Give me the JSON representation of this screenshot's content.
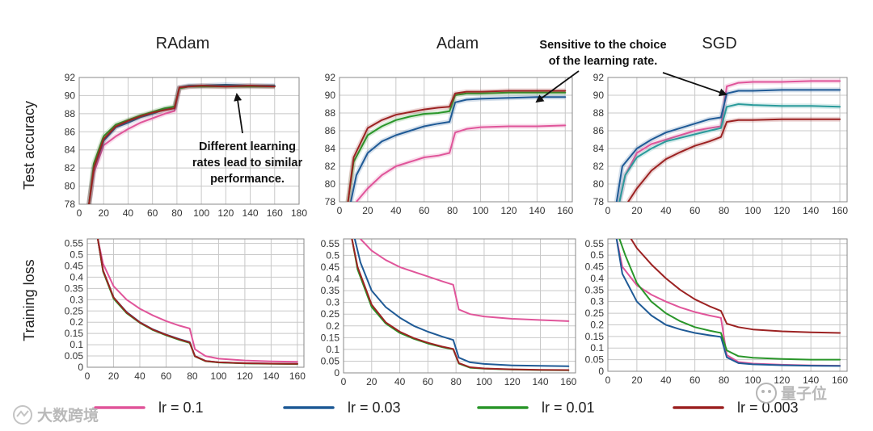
{
  "colors": {
    "lr_0_1": "#e0559a",
    "lr_0_03": "#1f5a96",
    "lr_0_01": "#2a962a",
    "lr_0_003": "#9c2222",
    "teal": "#2a9b9b",
    "grid": "#c8c8c8",
    "axis": "#888888"
  },
  "row_labels": {
    "top": "Test accuracy",
    "bottom": "Training loss"
  },
  "legend": [
    {
      "label": "lr = 0.1",
      "color": "#e0559a"
    },
    {
      "label": "lr = 0.03",
      "color": "#1f5a96"
    },
    {
      "label": "lr = 0.01",
      "color": "#2a962a"
    },
    {
      "label": "lr = 0.003",
      "color": "#9c2222"
    }
  ],
  "annotations": {
    "radam": [
      "Different learning",
      "rates lead to similar",
      "performance."
    ],
    "adam_sgd": [
      "Sensitive to the choice",
      "of the learning rate."
    ]
  },
  "watermarks": {
    "left": "大数跨境",
    "right": "量子位"
  },
  "chart_data": [
    {
      "id": "radam-acc",
      "type": "line",
      "title": "RAdam",
      "ylabel": "Test accuracy",
      "xlim": [
        0,
        180
      ],
      "ylim": [
        78,
        92
      ],
      "xticks": [
        0,
        20,
        40,
        60,
        80,
        100,
        120,
        140,
        160,
        180
      ],
      "yticks": [
        78,
        80,
        82,
        84,
        86,
        88,
        90,
        92
      ],
      "series": [
        {
          "color": "#e0559a",
          "x": [
            8,
            12,
            20,
            30,
            40,
            50,
            60,
            70,
            78,
            82,
            90,
            100,
            120,
            140,
            160
          ],
          "y": [
            78,
            81.5,
            84.5,
            85.5,
            86.3,
            87,
            87.5,
            88,
            88.3,
            90.8,
            91,
            91,
            91,
            91,
            91
          ]
        },
        {
          "color": "#1f5a96",
          "x": [
            8,
            12,
            20,
            30,
            40,
            50,
            60,
            70,
            78,
            82,
            90,
            100,
            120,
            140,
            160
          ],
          "y": [
            78,
            82,
            85,
            86.5,
            87,
            87.6,
            88,
            88.5,
            88.6,
            90.9,
            91.1,
            91.1,
            91.2,
            91.1,
            91.1
          ]
        },
        {
          "color": "#2a962a",
          "x": [
            8,
            12,
            20,
            30,
            40,
            50,
            60,
            70,
            78,
            82,
            90,
            100,
            120,
            140,
            160
          ],
          "y": [
            78,
            82.5,
            85.5,
            86.8,
            87.3,
            87.8,
            88.2,
            88.6,
            88.8,
            90.8,
            91,
            91,
            91,
            91,
            91
          ]
        },
        {
          "color": "#9c2222",
          "x": [
            8,
            12,
            20,
            30,
            40,
            50,
            60,
            70,
            78,
            82,
            90,
            100,
            120,
            140,
            160
          ],
          "y": [
            78,
            82,
            85.2,
            86.6,
            87.2,
            87.7,
            88.1,
            88.4,
            88.6,
            90.9,
            91,
            91.1,
            91,
            91.1,
            91
          ]
        }
      ]
    },
    {
      "id": "adam-acc",
      "type": "line",
      "title": "Adam",
      "xlim": [
        0,
        165
      ],
      "ylim": [
        78,
        92
      ],
      "xticks": [
        0,
        20,
        40,
        60,
        80,
        100,
        120,
        140,
        160
      ],
      "yticks": [
        78,
        80,
        82,
        84,
        86,
        88,
        90,
        92
      ],
      "series": [
        {
          "color": "#e0559a",
          "x": [
            12,
            20,
            30,
            40,
            50,
            60,
            70,
            78,
            82,
            90,
            100,
            120,
            140,
            160
          ],
          "y": [
            78,
            79.5,
            81,
            82,
            82.5,
            83,
            83.2,
            83.5,
            85.8,
            86.2,
            86.4,
            86.5,
            86.5,
            86.6
          ]
        },
        {
          "color": "#1f5a96",
          "x": [
            8,
            12,
            20,
            30,
            40,
            50,
            60,
            70,
            78,
            82,
            90,
            100,
            120,
            140,
            160
          ],
          "y": [
            78,
            81,
            83.5,
            84.8,
            85.5,
            86,
            86.5,
            86.8,
            87,
            89.2,
            89.5,
            89.6,
            89.7,
            89.8,
            89.8
          ]
        },
        {
          "color": "#2a962a",
          "x": [
            6,
            10,
            20,
            30,
            40,
            50,
            60,
            70,
            78,
            82,
            90,
            100,
            120,
            140,
            160
          ],
          "y": [
            78,
            82.5,
            85.5,
            86.5,
            87.2,
            87.6,
            87.9,
            88,
            88.2,
            90,
            90.2,
            90.2,
            90.3,
            90.3,
            90.3
          ]
        },
        {
          "color": "#9c2222",
          "x": [
            6,
            10,
            20,
            30,
            40,
            50,
            60,
            70,
            78,
            82,
            90,
            100,
            120,
            140,
            160
          ],
          "y": [
            78,
            83,
            86.3,
            87.2,
            87.8,
            88.1,
            88.4,
            88.6,
            88.7,
            90.2,
            90.4,
            90.4,
            90.5,
            90.5,
            90.5
          ]
        }
      ]
    },
    {
      "id": "sgd-acc",
      "type": "line",
      "title": "SGD",
      "xlim": [
        0,
        165
      ],
      "ylim": [
        78,
        92
      ],
      "xticks": [
        0,
        20,
        40,
        60,
        80,
        100,
        120,
        140,
        160
      ],
      "yticks": [
        78,
        80,
        82,
        84,
        86,
        88,
        90,
        92
      ],
      "series": [
        {
          "color": "#e0559a",
          "x": [
            8,
            12,
            20,
            30,
            40,
            50,
            60,
            70,
            78,
            82,
            90,
            100,
            120,
            140,
            160
          ],
          "y": [
            78,
            81,
            83.5,
            84.5,
            85,
            85.5,
            86,
            86.3,
            86.5,
            91,
            91.4,
            91.5,
            91.5,
            91.6,
            91.6
          ]
        },
        {
          "color": "#1f5a96",
          "x": [
            6,
            10,
            20,
            30,
            40,
            50,
            60,
            70,
            78,
            82,
            90,
            100,
            120,
            140,
            160
          ],
          "y": [
            78,
            82,
            84,
            85,
            85.8,
            86.3,
            86.8,
            87.3,
            87.5,
            90.2,
            90.5,
            90.5,
            90.6,
            90.6,
            90.6
          ]
        },
        {
          "color": "#2a9b9b",
          "x": [
            8,
            12,
            20,
            30,
            40,
            50,
            60,
            70,
            78,
            82,
            90,
            100,
            120,
            140,
            160
          ],
          "y": [
            78,
            81,
            83,
            84,
            84.8,
            85.2,
            85.6,
            86,
            86.3,
            88.7,
            89,
            88.9,
            88.8,
            88.8,
            88.7
          ]
        },
        {
          "color": "#9c2222",
          "x": [
            14,
            20,
            30,
            40,
            50,
            60,
            70,
            78,
            82,
            90,
            100,
            120,
            140,
            160
          ],
          "y": [
            78,
            79.5,
            81.5,
            82.8,
            83.6,
            84.3,
            84.8,
            85.3,
            87,
            87.2,
            87.2,
            87.3,
            87.3,
            87.3
          ]
        }
      ]
    },
    {
      "id": "radam-loss",
      "type": "line",
      "ylabel": "Training loss",
      "xlim": [
        0,
        165
      ],
      "ylim": [
        0,
        0.57
      ],
      "xticks": [
        0,
        20,
        40,
        60,
        80,
        100,
        120,
        140,
        160
      ],
      "yticks": [
        0,
        0.05,
        0.1,
        0.15,
        0.2,
        0.25,
        0.3,
        0.35,
        0.4,
        0.45,
        0.5,
        0.55
      ],
      "series": [
        {
          "color": "#e0559a",
          "x": [
            8,
            12,
            20,
            30,
            40,
            50,
            60,
            70,
            78,
            82,
            90,
            100,
            120,
            140,
            160
          ],
          "y": [
            0.57,
            0.46,
            0.36,
            0.3,
            0.26,
            0.23,
            0.205,
            0.185,
            0.172,
            0.08,
            0.05,
            0.038,
            0.03,
            0.026,
            0.024
          ]
        },
        {
          "color": "#1f5a96",
          "x": [
            8,
            12,
            20,
            30,
            40,
            50,
            60,
            70,
            78,
            82,
            90,
            100,
            120,
            140,
            160
          ],
          "y": [
            0.57,
            0.43,
            0.31,
            0.245,
            0.2,
            0.168,
            0.145,
            0.125,
            0.112,
            0.05,
            0.028,
            0.022,
            0.018,
            0.016,
            0.015
          ]
        },
        {
          "color": "#2a962a",
          "x": [
            8,
            12,
            20,
            30,
            40,
            50,
            60,
            70,
            78,
            82,
            90,
            100,
            120,
            140,
            160
          ],
          "y": [
            0.57,
            0.425,
            0.305,
            0.24,
            0.197,
            0.165,
            0.142,
            0.122,
            0.108,
            0.048,
            0.027,
            0.021,
            0.017,
            0.015,
            0.014
          ]
        },
        {
          "color": "#9c2222",
          "x": [
            8,
            12,
            20,
            30,
            40,
            50,
            60,
            70,
            78,
            82,
            90,
            100,
            120,
            140,
            160
          ],
          "y": [
            0.57,
            0.43,
            0.31,
            0.243,
            0.199,
            0.167,
            0.144,
            0.124,
            0.11,
            0.049,
            0.028,
            0.022,
            0.018,
            0.016,
            0.015
          ]
        }
      ]
    },
    {
      "id": "adam-loss",
      "type": "line",
      "xlim": [
        0,
        165
      ],
      "ylim": [
        0,
        0.57
      ],
      "xticks": [
        0,
        20,
        40,
        60,
        80,
        100,
        120,
        140,
        160
      ],
      "yticks": [
        0,
        0.05,
        0.1,
        0.15,
        0.2,
        0.25,
        0.3,
        0.35,
        0.4,
        0.45,
        0.5,
        0.55
      ],
      "series": [
        {
          "color": "#e0559a",
          "x": [
            12,
            20,
            30,
            40,
            50,
            60,
            70,
            78,
            82,
            90,
            100,
            120,
            140,
            160
          ],
          "y": [
            0.57,
            0.52,
            0.48,
            0.45,
            0.43,
            0.41,
            0.39,
            0.375,
            0.27,
            0.25,
            0.24,
            0.23,
            0.225,
            0.22
          ]
        },
        {
          "color": "#1f5a96",
          "x": [
            8,
            12,
            20,
            30,
            40,
            50,
            60,
            70,
            78,
            82,
            90,
            100,
            120,
            140,
            160
          ],
          "y": [
            0.57,
            0.47,
            0.35,
            0.28,
            0.235,
            0.2,
            0.175,
            0.155,
            0.14,
            0.065,
            0.045,
            0.038,
            0.032,
            0.03,
            0.028
          ]
        },
        {
          "color": "#2a962a",
          "x": [
            6,
            10,
            20,
            30,
            40,
            50,
            60,
            70,
            78,
            82,
            90,
            100,
            120,
            140,
            160
          ],
          "y": [
            0.57,
            0.44,
            0.28,
            0.21,
            0.17,
            0.145,
            0.125,
            0.11,
            0.1,
            0.04,
            0.022,
            0.018,
            0.014,
            0.012,
            0.011
          ]
        },
        {
          "color": "#9c2222",
          "x": [
            6,
            10,
            20,
            30,
            40,
            50,
            60,
            70,
            78,
            82,
            90,
            100,
            120,
            140,
            160
          ],
          "y": [
            0.57,
            0.45,
            0.29,
            0.215,
            0.175,
            0.148,
            0.128,
            0.112,
            0.102,
            0.042,
            0.024,
            0.019,
            0.015,
            0.013,
            0.012
          ]
        }
      ]
    },
    {
      "id": "sgd-loss",
      "type": "line",
      "xlim": [
        0,
        165
      ],
      "ylim": [
        0,
        0.57
      ],
      "xticks": [
        0,
        20,
        40,
        60,
        80,
        100,
        120,
        140,
        160
      ],
      "yticks": [
        0,
        0.05,
        0.1,
        0.15,
        0.2,
        0.25,
        0.3,
        0.35,
        0.4,
        0.45,
        0.5,
        0.55
      ],
      "series": [
        {
          "color": "#e0559a",
          "x": [
            6,
            10,
            20,
            30,
            40,
            50,
            60,
            70,
            78,
            82,
            90,
            100,
            120,
            140,
            160
          ],
          "y": [
            0.57,
            0.45,
            0.37,
            0.33,
            0.3,
            0.275,
            0.255,
            0.24,
            0.23,
            0.07,
            0.04,
            0.033,
            0.028,
            0.025,
            0.024
          ]
        },
        {
          "color": "#1f5a96",
          "x": [
            6,
            10,
            20,
            30,
            40,
            50,
            60,
            70,
            78,
            82,
            90,
            100,
            120,
            140,
            160
          ],
          "y": [
            0.57,
            0.42,
            0.3,
            0.24,
            0.2,
            0.18,
            0.165,
            0.155,
            0.148,
            0.06,
            0.035,
            0.03,
            0.026,
            0.024,
            0.023
          ]
        },
        {
          "color": "#2a962a",
          "x": [
            8,
            12,
            20,
            30,
            40,
            50,
            60,
            70,
            78,
            82,
            90,
            100,
            120,
            140,
            160
          ],
          "y": [
            0.57,
            0.5,
            0.38,
            0.3,
            0.25,
            0.215,
            0.19,
            0.175,
            0.165,
            0.09,
            0.065,
            0.058,
            0.053,
            0.05,
            0.05
          ]
        },
        {
          "color": "#9c2222",
          "x": [
            16,
            20,
            30,
            40,
            50,
            60,
            70,
            78,
            82,
            90,
            100,
            120,
            140,
            160
          ],
          "y": [
            0.57,
            0.53,
            0.46,
            0.4,
            0.35,
            0.31,
            0.28,
            0.26,
            0.205,
            0.19,
            0.18,
            0.172,
            0.168,
            0.165
          ]
        }
      ]
    }
  ]
}
